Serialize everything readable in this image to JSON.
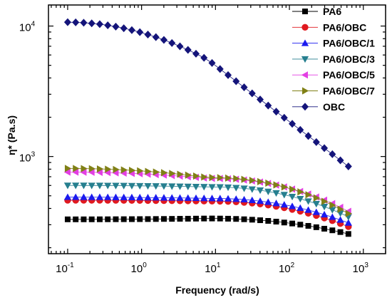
{
  "chart_data": {
    "type": "scatter",
    "xlabel": "Frequency (rad/s)",
    "ylabel": "η* (Pa.s)",
    "x_scale": "log",
    "y_scale": "log",
    "xlim": [
      0.055,
      2000
    ],
    "ylim": [
      180,
      14500
    ],
    "x_ticks": [
      {
        "base": "10",
        "exp": "-1",
        "value": 0.1
      },
      {
        "base": "10",
        "exp": "0",
        "value": 1
      },
      {
        "base": "10",
        "exp": "1",
        "value": 10
      },
      {
        "base": "10",
        "exp": "2",
        "value": 100
      },
      {
        "base": "10",
        "exp": "3",
        "value": 1000
      }
    ],
    "y_ticks": [
      {
        "base": "10",
        "exp": "3",
        "value": 1000
      },
      {
        "base": "10",
        "exp": "4",
        "value": 10000
      }
    ],
    "grid": false,
    "legend_position": "top-right",
    "x_range": [
      0.1,
      628
    ],
    "points_per_series": 36,
    "series": [
      {
        "name": "PA6",
        "marker": "square",
        "color": "#000000",
        "low_freq_value": 330,
        "mid_value": 335,
        "high_freq_value": 255
      },
      {
        "name": "PA6/OBC",
        "marker": "circle",
        "color": "#e0191f",
        "low_freq_value": 462,
        "mid_value": 455,
        "high_freq_value": 290
      },
      {
        "name": "PA6/OBC/1",
        "marker": "triangle-up",
        "color": "#1a1aef",
        "low_freq_value": 488,
        "mid_value": 478,
        "high_freq_value": 310
      },
      {
        "name": "PA6/OBC/3",
        "marker": "triangle-down",
        "color": "#267f8f",
        "low_freq_value": 600,
        "mid_value": 585,
        "high_freq_value": 345
      },
      {
        "name": "PA6/OBC/5",
        "marker": "triangle-left",
        "color": "#e33fe3",
        "low_freq_value": 760,
        "mid_value": 680,
        "high_freq_value": 380
      },
      {
        "name": "PA6/OBC/7",
        "marker": "triangle-right",
        "color": "#808016",
        "low_freq_value": 810,
        "mid_value": 690,
        "high_freq_value": 365
      },
      {
        "name": "OBC",
        "marker": "diamond",
        "color": "#14147a",
        "low_freq_value": 10700,
        "mid_value": 5500,
        "high_freq_value": 840
      }
    ]
  }
}
